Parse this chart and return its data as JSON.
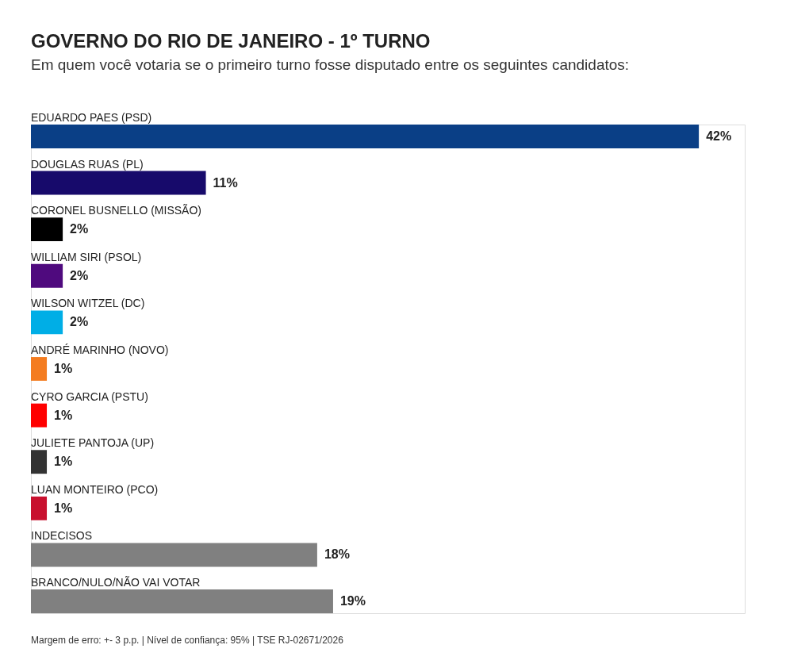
{
  "chart_data": {
    "type": "bar",
    "orientation": "horizontal",
    "title": "GOVERNO DO RIO DE JANEIRO - 1º TURNO",
    "subtitle": "Em quem você votaria se o primeiro turno fosse disputado entre os seguintes candidatos:",
    "categories": [
      "EDUARDO PAES (PSD)",
      "DOUGLAS RUAS (PL)",
      "CORONEL BUSNELLO (MISSÃO)",
      "WILLIAM SIRI (PSOL)",
      "WILSON WITZEL (DC)",
      "ANDRÉ MARINHO (NOVO)",
      "CYRO GARCIA (PSTU)",
      "JULIETE PANTOJA (UP)",
      "LUAN MONTEIRO (PCO)",
      "INDECISOS",
      "BRANCO/NULO/NÃO VAI VOTAR"
    ],
    "values": [
      42,
      11,
      2,
      2,
      2,
      1,
      1,
      1,
      1,
      18,
      19
    ],
    "value_labels": [
      "42%",
      "11%",
      "2%",
      "2%",
      "2%",
      "1%",
      "1%",
      "1%",
      "1%",
      "18%",
      "19%"
    ],
    "colors": [
      "#0a3f86",
      "#170a6b",
      "#000000",
      "#4f0a7e",
      "#00aee6",
      "#f47c20",
      "#ff0000",
      "#333333",
      "#c8102e",
      "#808080",
      "#808080"
    ],
    "annotations": [
      "Margem de erro: +- 3 p.p. | Nível de confiança: 95% | TSE RJ-02671/2026"
    ]
  }
}
